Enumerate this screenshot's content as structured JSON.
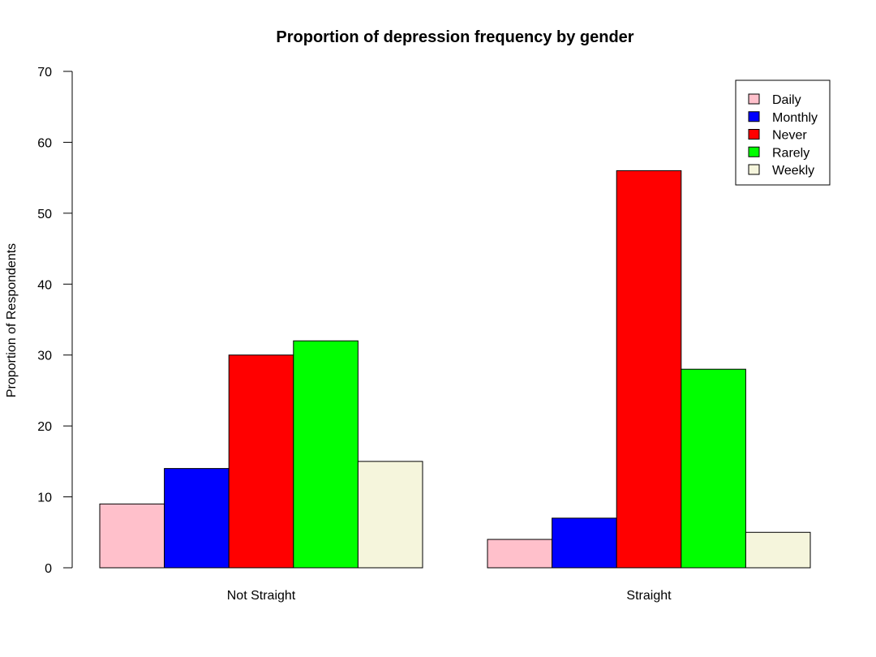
{
  "chart_data": {
    "type": "bar",
    "title": "Proportion of depression frequency by gender",
    "xlabel": "",
    "ylabel": "Proportion of Respondents",
    "categories": [
      "Not Straight",
      "Straight"
    ],
    "series": [
      {
        "name": "Daily",
        "color": "#FFC0CB",
        "values": [
          9,
          4
        ]
      },
      {
        "name": "Monthly",
        "color": "#0000FF",
        "values": [
          14,
          7
        ]
      },
      {
        "name": "Never",
        "color": "#FF0000",
        "values": [
          30,
          56
        ]
      },
      {
        "name": "Rarely",
        "color": "#00FF00",
        "values": [
          32,
          28
        ]
      },
      {
        "name": "Weekly",
        "color": "#F5F5DC",
        "values": [
          15,
          5
        ]
      }
    ],
    "ylim": [
      0,
      70
    ],
    "yticks": [
      0,
      10,
      20,
      30,
      40,
      50,
      60,
      70
    ],
    "grid": false,
    "legend_position": "top-right"
  }
}
